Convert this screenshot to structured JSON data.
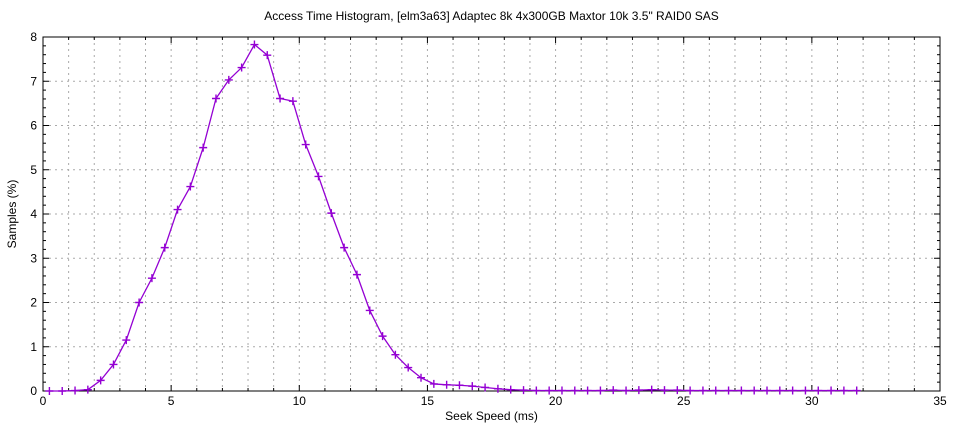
{
  "chart_data": {
    "type": "line",
    "title": "Access Time Histogram, [elm3a63] Adaptec 8k 4x300GB Maxtor 10k 3.5\" RAID0 SAS",
    "xlabel": "Seek Speed (ms)",
    "ylabel": "Samples (%)",
    "xlim": [
      0,
      35
    ],
    "ylim": [
      0,
      8
    ],
    "x_major_ticks": [
      0,
      5,
      10,
      15,
      20,
      25,
      30,
      35
    ],
    "x_minor_step": 1,
    "y_major_ticks": [
      0,
      1,
      2,
      3,
      4,
      5,
      6,
      7,
      8
    ],
    "y_minor_step": 0.2,
    "grid": "vertical minor dashed + horizontal major dashed",
    "legend_position": "none",
    "line_color": "#9400d3",
    "grid_color": "#aaaaaa",
    "axis_color": "#000000",
    "marker": "plus",
    "x": [
      0.25,
      0.75,
      1.25,
      1.75,
      2.25,
      2.75,
      3.25,
      3.75,
      4.25,
      4.75,
      5.25,
      5.75,
      6.25,
      6.75,
      7.25,
      7.75,
      8.25,
      8.75,
      9.25,
      9.75,
      10.25,
      10.75,
      11.25,
      11.75,
      12.25,
      12.75,
      13.25,
      13.75,
      14.25,
      14.75,
      15.25,
      15.75,
      16.25,
      16.75,
      17.25,
      17.75,
      18.25,
      18.75,
      19.25,
      19.75,
      20.25,
      20.75,
      21.25,
      21.75,
      22.25,
      22.75,
      23.25,
      23.75,
      24.25,
      24.75,
      25.25,
      25.75,
      26.25,
      26.75,
      27.25,
      27.75,
      28.25,
      28.75,
      29.25,
      29.75,
      30.25,
      30.75,
      31.25,
      31.75
    ],
    "y": [
      0,
      0,
      0.01,
      0.03,
      0.24,
      0.6,
      1.15,
      2.0,
      2.55,
      3.24,
      4.1,
      4.62,
      5.5,
      6.61,
      7.03,
      7.31,
      7.83,
      7.59,
      6.61,
      6.55,
      5.57,
      4.85,
      4.02,
      3.24,
      2.63,
      1.82,
      1.24,
      0.82,
      0.53,
      0.3,
      0.16,
      0.14,
      0.13,
      0.11,
      0.08,
      0.05,
      0.03,
      0.02,
      0.01,
      0.01,
      0.01,
      0.01,
      0.01,
      0.01,
      0.02,
      0.01,
      0.02,
      0.03,
      0.02,
      0.02,
      0.01,
      0.01,
      0.01,
      0.01,
      0.01,
      0.01,
      0.01,
      0.01,
      0.01,
      0.01,
      0.01,
      0.01,
      0.01,
      0.01
    ]
  }
}
